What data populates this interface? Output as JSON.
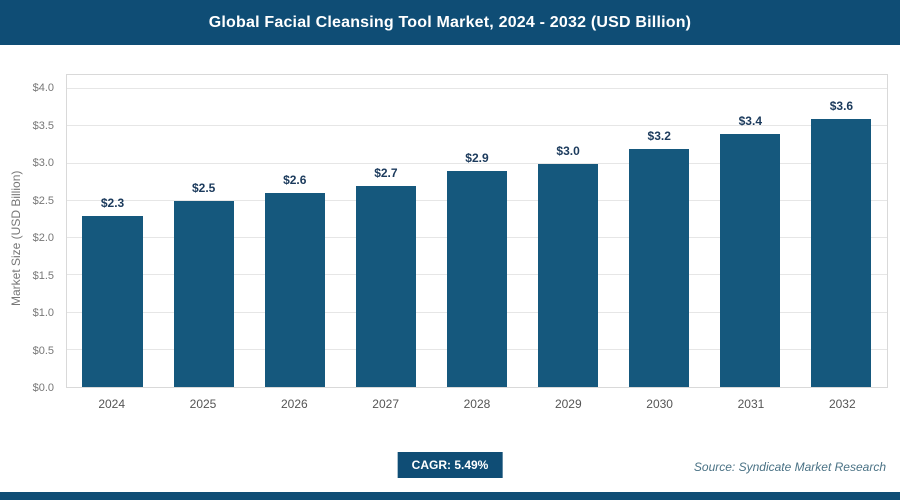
{
  "header": {
    "title": "Global Facial Cleansing Tool Market, 2024 - 2032 (USD Billion)"
  },
  "chart_data": {
    "type": "bar",
    "title": "Global Facial Cleansing Tool Market, 2024 - 2032 (USD Billion)",
    "categories": [
      "2024",
      "2025",
      "2026",
      "2027",
      "2028",
      "2029",
      "2030",
      "2031",
      "2032"
    ],
    "values": [
      2.3,
      2.5,
      2.6,
      2.7,
      2.9,
      3.0,
      3.2,
      3.4,
      3.6
    ],
    "value_labels": [
      "$2.3",
      "$2.5",
      "$2.6",
      "$2.7",
      "$2.9",
      "$3.0",
      "$3.2",
      "$3.4",
      "$3.6"
    ],
    "xlabel": "",
    "ylabel": "Market Size (USD Billion)",
    "ylim": [
      0,
      4.0
    ],
    "ytick_step": 0.5,
    "ytick_labels": [
      "$0.0",
      "$0.5",
      "$1.0",
      "$1.5",
      "$2.0",
      "$2.5",
      "$3.0",
      "$3.5",
      "$4.0"
    ],
    "grid": true,
    "legend": "none",
    "bar_color": "#15587d"
  },
  "footer": {
    "cagr_label": "CAGR: 5.49%",
    "source": "Source: Syndicate Market Research"
  },
  "colors": {
    "accent": "#0f4d75",
    "header_bg": "#0f4d75",
    "grid": "#e6e6e6",
    "label_text": "#1b3a5c"
  }
}
